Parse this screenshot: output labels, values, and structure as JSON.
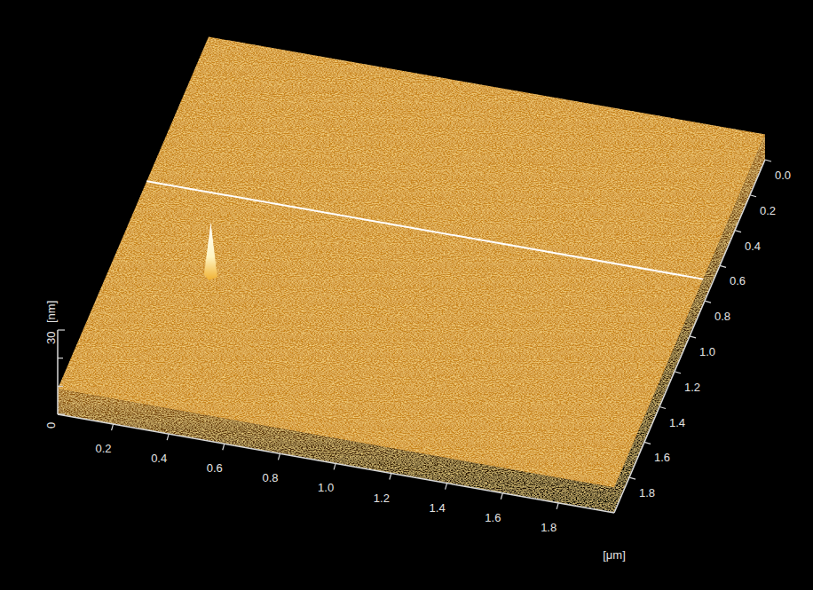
{
  "chart_data": {
    "type": "surface",
    "xlabel": "[μm]",
    "zlabel": "[nm]",
    "xlim": [
      0,
      2
    ],
    "ylim": [
      0,
      2
    ],
    "zlim": [
      0,
      30
    ],
    "xticks": [
      0.2,
      0.4,
      0.6,
      0.8,
      {
        "value": 1,
        "label": "1.0"
      },
      1.2,
      1.4,
      1.6,
      1.8
    ],
    "yticks": [
      {
        "value": 0,
        "label": "0.0"
      },
      0.2,
      0.4,
      0.6,
      0.8,
      {
        "value": 1,
        "label": "1.0"
      },
      1.2,
      1.4,
      1.6,
      1.8
    ],
    "zticks": [
      0,
      30
    ],
    "z_minor_ticks": [
      10,
      20
    ],
    "mean_height": 9,
    "spike": {
      "x": 0.35,
      "y": 1.26,
      "z": 28
    },
    "profile_y": 0.82,
    "color": "#c8841f"
  }
}
